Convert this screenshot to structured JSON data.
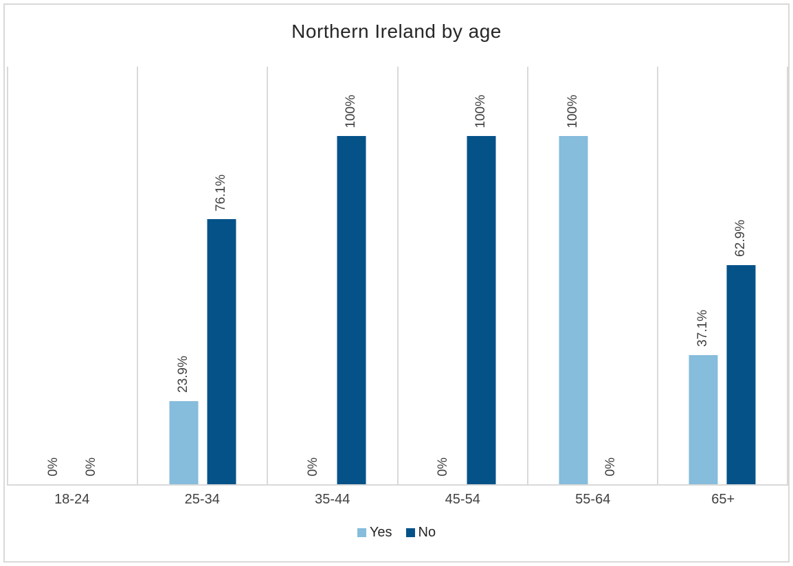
{
  "title": "Northern Ireland by age",
  "chart_data": {
    "type": "bar",
    "title": "Northern Ireland by age",
    "categories": [
      "18-24",
      "25-34",
      "35-44",
      "45-54",
      "55-64",
      "65+"
    ],
    "series": [
      {
        "name": "Yes",
        "color": "#86BCDC",
        "values": [
          0,
          23.9,
          0,
          0,
          100,
          37.1
        ],
        "data_labels": [
          "0%",
          "23.9%",
          "0%",
          "0%",
          "100%",
          "37.1%"
        ]
      },
      {
        "name": "No",
        "color": "#055289",
        "values": [
          0,
          76.1,
          100,
          100,
          0,
          62.9
        ],
        "data_labels": [
          "0%",
          "76.1%",
          "100%",
          "100%",
          "0%",
          "62.9%"
        ]
      }
    ],
    "unit": "%",
    "ylim": [
      0,
      120
    ],
    "y_axis_visible": false,
    "grid": "vertical-category-separators",
    "gridline_color": "#d9d9d9",
    "data_label_rotation": 270,
    "legend_position": "bottom"
  }
}
